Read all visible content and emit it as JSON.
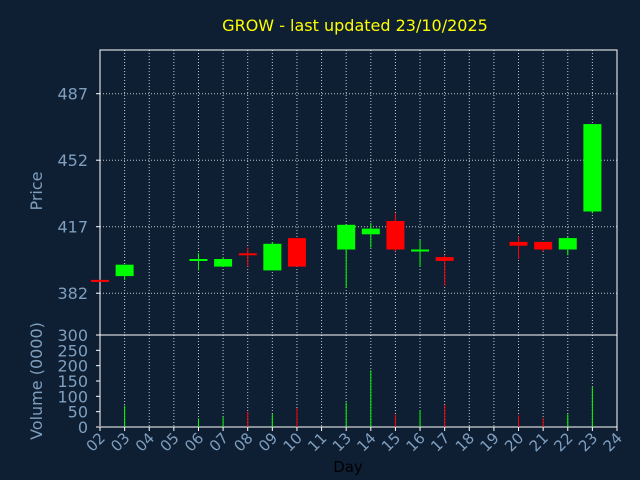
{
  "chart_data": {
    "type": "candlestick",
    "title": "GROW - last updated 23/10/2025",
    "xlabel": "Day",
    "price_axis": {
      "ylabel": "Price",
      "ticks": [
        382,
        417,
        452,
        487
      ],
      "ylim": [
        360,
        510
      ]
    },
    "volume_axis": {
      "ylabel": "Volume (0000)",
      "ticks": [
        0,
        50,
        100,
        150,
        200,
        250,
        300
      ],
      "ylim": [
        0,
        300
      ]
    },
    "x_ticks": [
      "02",
      "03",
      "04",
      "05",
      "06",
      "07",
      "08",
      "09",
      "10",
      "11",
      "13",
      "14",
      "15",
      "16",
      "17",
      "18",
      "19",
      "20",
      "21",
      "22",
      "23",
      "24"
    ],
    "colors": {
      "up": "#00ff00",
      "down": "#ff0000",
      "title": "#ffff00",
      "label": "#7f9fbf",
      "grid": "#ffffff",
      "background": "#0f1f33"
    },
    "candles": [
      {
        "day": "02",
        "open": 389,
        "high": 389,
        "low": 388,
        "close": 388,
        "volume": 2
      },
      {
        "day": "03",
        "open": 391,
        "high": 397,
        "low": 389,
        "close": 397,
        "volume": 70
      },
      {
        "day": "06",
        "open": 399,
        "high": 403,
        "low": 394,
        "close": 400,
        "volume": 28
      },
      {
        "day": "07",
        "open": 396,
        "high": 401,
        "low": 396,
        "close": 400,
        "volume": 33
      },
      {
        "day": "08",
        "open": 403,
        "high": 406,
        "low": 396,
        "close": 402,
        "volume": 50
      },
      {
        "day": "09",
        "open": 394,
        "high": 409,
        "low": 394,
        "close": 408,
        "volume": 42
      },
      {
        "day": "10",
        "open": 411,
        "high": 411,
        "low": 396,
        "close": 396,
        "volume": 62
      },
      {
        "day": "13",
        "open": 405,
        "high": 418,
        "low": 385,
        "close": 418,
        "volume": 80
      },
      {
        "day": "14",
        "open": 413,
        "high": 419,
        "low": 406,
        "close": 416,
        "volume": 185
      },
      {
        "day": "15",
        "open": 420,
        "high": 424,
        "low": 404,
        "close": 405,
        "volume": 40
      },
      {
        "day": "16",
        "open": 404,
        "high": 410,
        "low": 396,
        "close": 405,
        "volume": 55
      },
      {
        "day": "17",
        "open": 401,
        "high": 402,
        "low": 386,
        "close": 399,
        "volume": 72
      },
      {
        "day": "20",
        "open": 409,
        "high": 412,
        "low": 400,
        "close": 407,
        "volume": 38
      },
      {
        "day": "21",
        "open": 409,
        "high": 409,
        "low": 404,
        "close": 405,
        "volume": 30
      },
      {
        "day": "22",
        "open": 405,
        "high": 412,
        "low": 402,
        "close": 411,
        "volume": 42
      },
      {
        "day": "23",
        "open": 425,
        "high": 471,
        "low": 424,
        "close": 471,
        "volume": 130
      }
    ]
  }
}
